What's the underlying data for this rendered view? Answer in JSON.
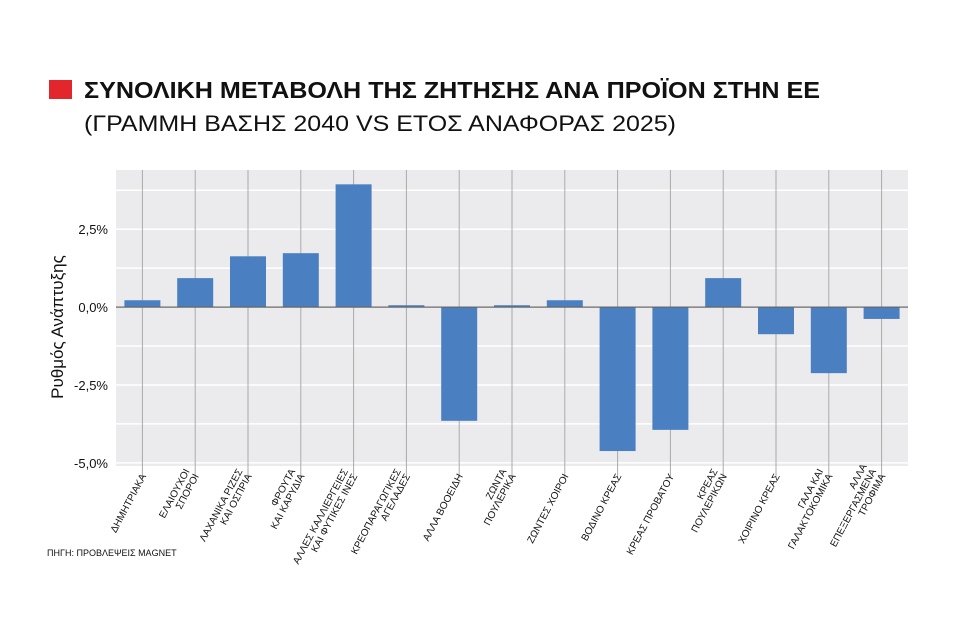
{
  "chart_data": {
    "type": "bar",
    "title": "ΣΥΝΟΛΙΚΗ ΜΕΤΑΒΟΛΗ ΤΗΣ ΖΗΤΗΣΗΣ ΑΝΑ ΠΡΟΪΟΝ ΣΤΗΝ ΕΕ",
    "subtitle": "(ΓΡΑΜΜΗ ΒΑΣΗΣ 2040 VS ΕΤΟΣ ΑΝΑΦΟΡΑΣ 2025)",
    "y_label": "Ρυθμός Ανάπτυξης",
    "source": "ΠΗΓΗ: ΠΡΟΒΛΕΨΕΙΣ MAGNET",
    "categories": [
      [
        "ΔΗΜΗΤΡΙΑΚΑ"
      ],
      [
        "ΕΛΑΙΟΥΧΟΙ",
        "ΣΠΟΡΟΙ"
      ],
      [
        "ΛΑΧΑΝΙΚΑ ΡΙΖΕΣ",
        "ΚΑΙ ΟΣΠΡΙΑ"
      ],
      [
        "ΦΡΟΥΤΑ",
        "ΚΑΙ ΚΑΡΥΔΙΑ"
      ],
      [
        "ΑΛΛΕΣ ΚΑΛΛΙΕΡΓΕΙΕΣ",
        "ΚΑΙ ΦΥΤΙΚΕΣ ΙΝΕΣ"
      ],
      [
        "ΚΡΕΟΠΑΡΑΓΩΓΙΚΕΣ",
        "ΑΓΕΛΑΔΕΣ"
      ],
      [
        "ΑΛΛΑ ΒΟΟΕΙΔΗ"
      ],
      [
        "ΖΩΝΤΑ",
        "ΠΟΥΛΕΡΙΚΑ"
      ],
      [
        "ΖΩΝΤΕΣ ΧΟΙΡΟΙ"
      ],
      [
        "ΒΟΔΙΝΟ ΚΡΕΑΣ"
      ],
      [
        "ΚΡΕΑΣ ΠΡΟΒΑΤΟΥ"
      ],
      [
        "ΚΡΕΑΣ",
        "ΠΟΥΛΕΡΙΚΩΝ"
      ],
      [
        "ΧΟΙΡΙΝΟ ΚΡΕΑΣ"
      ],
      [
        "ΓΑΛΑ ΚΑΙ",
        "ΓΑΛΑΚΤΟΚΟΜΙΚΑ"
      ],
      [
        "ΑΛΛΑ",
        "ΕΠΕΞΕΡΓΑΣΜΕΝΑ",
        "ΤΡΟΦΙΜΑ"
      ]
    ],
    "values": [
      0.22,
      0.93,
      1.63,
      1.73,
      3.94,
      0.06,
      -3.65,
      0.06,
      0.22,
      -4.62,
      -3.94,
      0.93,
      -0.87,
      -2.12,
      -0.38
    ],
    "color": "#4a7fc1",
    "ylim": [
      -5.1,
      4.4
    ],
    "yticks": [
      {
        "value": 2.5,
        "label": "2,5%"
      },
      {
        "value": 0,
        "label": "0,0%"
      },
      {
        "value": -2.5,
        "label": "-2,5%"
      },
      {
        "value": -5,
        "label": "-5,0%"
      }
    ],
    "minor_yticks": [
      3.75,
      1.25,
      -1.25,
      -3.75
    ],
    "grid": true
  }
}
